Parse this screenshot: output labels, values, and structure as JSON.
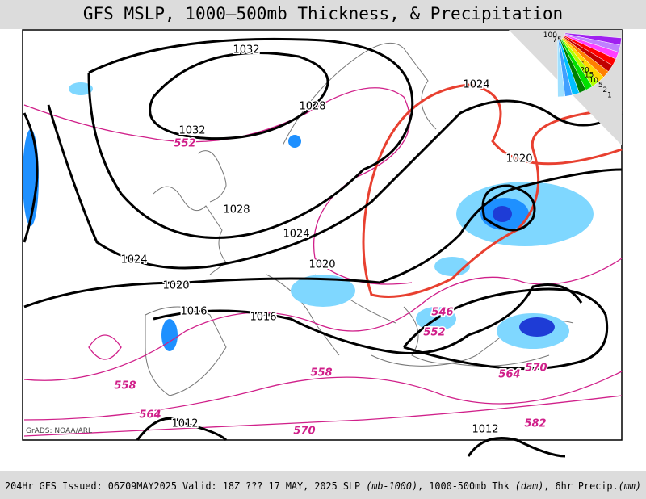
{
  "title": "GFS MSLP, 1000–500mb Thickness, & Precipitation",
  "credit": "GrADS: NOAA/ARL",
  "isobar_labels": [
    "1032",
    "1028",
    "1032",
    "1024",
    "1020",
    "1028",
    "1024",
    "1024",
    "1020",
    "1020",
    "1016",
    "1016",
    "1012",
    "1012"
  ],
  "thickness_labels": [
    "552",
    "546",
    "552",
    "558",
    "558",
    "564",
    "564",
    "570",
    "570",
    "582"
  ],
  "colorbar_labels": [
    "100",
    "75",
    "60",
    "50",
    "40",
    "30",
    "25",
    "20",
    "15",
    "10",
    "5",
    "2",
    "1"
  ],
  "footer": {
    "run": "204Hr GFS Issued: 06Z09MAY2025 Valid: 18Z ??? 17 MAY, 2025",
    "slp": "SLP",
    "slp_unit": "(mb-1000)",
    "thk": ", 1000-500mb Thk",
    "thk_unit": "(dam)",
    "precip": ", 6hr Precip.",
    "precip_unit": "(mm)"
  }
}
